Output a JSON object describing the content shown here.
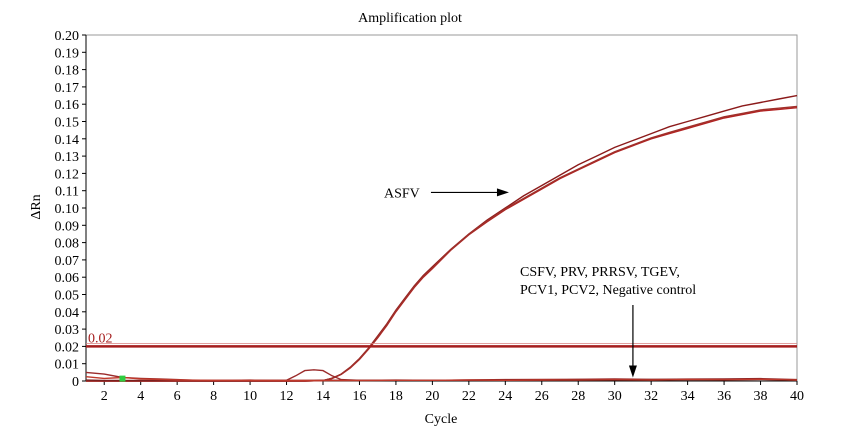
{
  "chart_data": {
    "type": "line",
    "title": "Amplification plot",
    "xlabel": "Cycle",
    "ylabel": "ΔRn",
    "xlim": [
      1,
      40
    ],
    "ylim": [
      0,
      0.2
    ],
    "x_ticks": [
      2,
      4,
      6,
      8,
      10,
      12,
      14,
      16,
      18,
      20,
      22,
      24,
      26,
      28,
      30,
      32,
      34,
      36,
      38,
      40
    ],
    "y_ticks": [
      "0",
      "0.01",
      "0.02",
      "0.03",
      "0.04",
      "0.05",
      "0.06",
      "0.07",
      "0.08",
      "0.09",
      "0.10",
      "0.11",
      "0.12",
      "0.13",
      "0.14",
      "0.15",
      "0.16",
      "0.17",
      "0.18",
      "0.19",
      "0.20"
    ],
    "grid": false,
    "threshold": {
      "value": 0.02,
      "label": "0.02",
      "color": "#a51d1d"
    },
    "annotations": [
      {
        "text": "ASFV",
        "x": 24.2,
        "y": 0.109
      },
      {
        "line1": "CSFV, PRV, PRRSV, TGEV,",
        "line2": "PCV1, PCV2, Negative control",
        "x": 31,
        "y": 0.002
      }
    ],
    "series": [
      {
        "color": "#8b1a1a",
        "x": [
          1,
          2,
          3,
          4,
          5,
          6,
          7,
          8,
          9,
          10,
          11,
          12,
          13,
          14,
          14.5,
          15,
          15.5,
          16,
          16.5,
          17,
          17.5,
          18,
          18.5,
          19,
          19.5,
          20,
          21,
          22,
          23,
          24,
          25,
          26,
          27,
          28,
          29,
          30,
          31,
          32,
          33,
          34,
          35,
          36,
          37,
          38,
          39,
          40
        ],
        "y": [
          0,
          0,
          0,
          0,
          0,
          0,
          0,
          0,
          0,
          0,
          0,
          0,
          0,
          0.0003,
          0.0015,
          0.004,
          0.008,
          0.013,
          0.019,
          0.026,
          0.033,
          0.041,
          0.048,
          0.055,
          0.061,
          0.066,
          0.076,
          0.085,
          0.093,
          0.1,
          0.107,
          0.113,
          0.119,
          0.125,
          0.13,
          0.135,
          0.139,
          0.143,
          0.147,
          0.15,
          0.153,
          0.156,
          0.159,
          0.161,
          0.163,
          0.165
        ]
      },
      {
        "color": "#b22222",
        "x": [
          1,
          2,
          3,
          4,
          5,
          6,
          7,
          8,
          9,
          10,
          11,
          12,
          13,
          14,
          14.5,
          15,
          15.5,
          16,
          16.5,
          17,
          17.5,
          18,
          18.5,
          19,
          19.5,
          20,
          21,
          22,
          23,
          24,
          25,
          26,
          27,
          28,
          29,
          30,
          31,
          32,
          33,
          34,
          35,
          36,
          37,
          38,
          39,
          40
        ],
        "y": [
          0,
          0,
          0,
          0,
          0,
          0,
          0,
          0,
          0,
          0,
          0,
          0,
          0,
          0.0003,
          0.0015,
          0.0038,
          0.0075,
          0.0125,
          0.0185,
          0.025,
          0.032,
          0.04,
          0.047,
          0.054,
          0.06,
          0.065,
          0.0755,
          0.0845,
          0.092,
          0.099,
          0.105,
          0.111,
          0.117,
          0.122,
          0.127,
          0.132,
          0.136,
          0.14,
          0.143,
          0.146,
          0.149,
          0.152,
          0.154,
          0.156,
          0.157,
          0.158
        ]
      },
      {
        "color": "#a0302a",
        "x": [
          1,
          2,
          3,
          4,
          5,
          6,
          7,
          8,
          9,
          10,
          11,
          12,
          13,
          14,
          14.5,
          15,
          15.5,
          16,
          16.5,
          17,
          17.5,
          18,
          18.5,
          19,
          19.5,
          20,
          21,
          22,
          23,
          24,
          25,
          26,
          27,
          28,
          29,
          30,
          31,
          32,
          33,
          34,
          35,
          36,
          37,
          38,
          39,
          40
        ],
        "y": [
          0,
          0,
          0,
          0,
          0,
          0,
          0,
          0,
          0,
          0,
          0,
          0,
          0,
          0.0003,
          0.0016,
          0.0039,
          0.0078,
          0.0128,
          0.0188,
          0.0255,
          0.0325,
          0.0405,
          0.0475,
          0.0545,
          0.0605,
          0.0655,
          0.0757,
          0.0848,
          0.0925,
          0.0995,
          0.1055,
          0.1115,
          0.1175,
          0.1225,
          0.1275,
          0.1325,
          0.1365,
          0.1405,
          0.1437,
          0.1467,
          0.1497,
          0.1527,
          0.1547,
          0.1567,
          0.1577,
          0.1587
        ]
      },
      {
        "color": "#9b2b2b",
        "x": [
          1,
          2,
          3,
          4,
          5,
          6,
          7,
          8,
          9,
          10,
          11,
          12,
          12.5,
          13,
          13.5,
          14,
          14.5,
          15,
          16,
          18,
          20,
          22,
          24,
          26,
          28,
          30,
          32,
          34,
          36,
          38,
          40
        ],
        "y": [
          0.005,
          0.004,
          0.002,
          0.0015,
          0.0012,
          0.0008,
          0.0004,
          0.0004,
          0.0004,
          0.0005,
          0.0004,
          0.0004,
          0.003,
          0.006,
          0.0065,
          0.006,
          0.003,
          0.0008,
          0.0004,
          0.0004,
          0.0004,
          0.0006,
          0.0008,
          0.0009,
          0.001,
          0.0012,
          0.0009,
          0.0011,
          0.0012,
          0.0014,
          0.0008
        ]
      },
      {
        "color": "#7a1f1f",
        "x": [
          1,
          2,
          4,
          6,
          8,
          10,
          12,
          14,
          16,
          18,
          20,
          22,
          24,
          26,
          28,
          30,
          32,
          34,
          36,
          38,
          40
        ],
        "y": [
          0.0005,
          0.0003,
          0.0003,
          0.0003,
          0.0002,
          0.0003,
          0.0003,
          0.0004,
          0.0004,
          0.0005,
          0.0004,
          0.0005,
          0.0006,
          0.0006,
          0.0008,
          0.0007,
          0.0009,
          0.0008,
          0.0009,
          0.001,
          0.0006
        ]
      },
      {
        "color": "#c0392b",
        "x": [
          1,
          2,
          3,
          4,
          6,
          8,
          10,
          12,
          14,
          16,
          18,
          20,
          22,
          24,
          26,
          28,
          30,
          32,
          34,
          36,
          38,
          40
        ],
        "y": [
          0.0025,
          0.0015,
          0.002,
          0.0012,
          0.0006,
          0.0004,
          0.0004,
          0.0003,
          0.0003,
          0.0003,
          0.0004,
          0.0004,
          0.0005,
          0.0004,
          0.0006,
          0.0005,
          0.0007,
          0.0006,
          0.0008,
          0.0007,
          0.0009,
          0.0005
        ]
      }
    ],
    "marker": {
      "x": 3,
      "y": 0.0008,
      "color": "#2ecc40"
    }
  }
}
